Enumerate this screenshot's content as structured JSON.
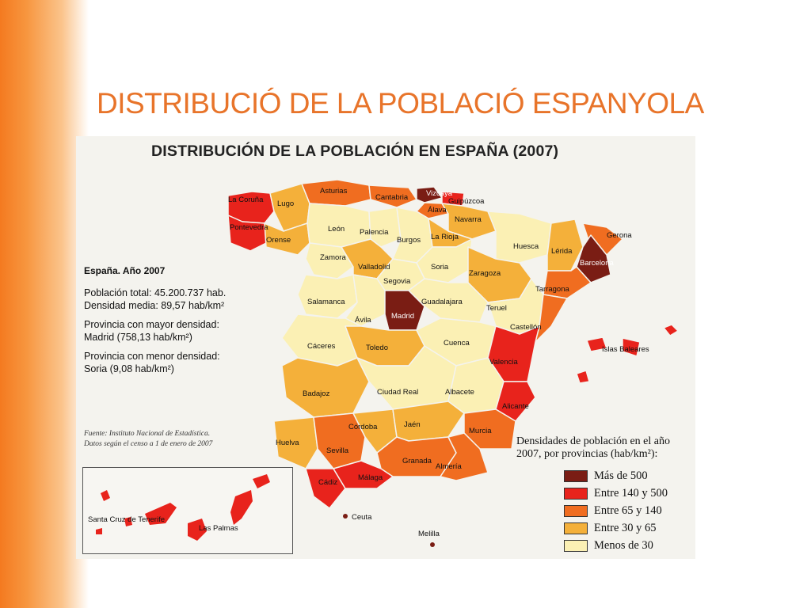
{
  "slide": {
    "title": "DISTRIBUCIÓ DE LA POBLACIÓ ESPANYOLA"
  },
  "map": {
    "heading": "DISTRIBUCIÓN DE LA POBLACIÓN EN ESPAÑA (2007)",
    "stats": {
      "header": "España. Año 2007",
      "total_line1": "Población total: 45.200.737 hab.",
      "total_line2": "Densidad media: 89,57 hab/km²",
      "max_line1": "Provincia con mayor densidad:",
      "max_line2": "Madrid (758,13 hab/km²)",
      "min_line1": "Provincia con menor densidad:",
      "min_line2": "Soria (9,08 hab/km²)"
    },
    "source": {
      "line1": "Fuente: Instituto Nacional de Estadística.",
      "line2": "Datos según el censo a 1 de enero de 2007"
    },
    "legend": {
      "title_line1": "Densidades de población en el año",
      "title_line2": "2007, por provincias (hab/km²):",
      "items": [
        {
          "label": "Más de 500",
          "color": "#7a1d14"
        },
        {
          "label": "Entre 140 y 500",
          "color": "#e8231c"
        },
        {
          "label": "Entre 65 y 140",
          "color": "#f06d20"
        },
        {
          "label": "Entre 30 y 65",
          "color": "#f4b03a"
        },
        {
          "label": "Menos de 30",
          "color": "#fbf0b4"
        }
      ]
    },
    "provinces": {
      "la_coruna": "La Coruña",
      "lugo": "Lugo",
      "asturias": "Asturias",
      "cantabria": "Cantabria",
      "vizcaya": "Vizcaya",
      "guipuzcoa": "Guipúzcoa",
      "alava": "Álava",
      "navarra": "Navarra",
      "pontevedra": "Pontevedra",
      "orense": "Orense",
      "leon": "León",
      "palencia": "Palencia",
      "burgos": "Burgos",
      "la_rioja": "La Rioja",
      "huesca": "Huesca",
      "gerona": "Gerona",
      "lerida": "Lérida",
      "barcelona": "Barcelona",
      "zamora": "Zamora",
      "valladolid": "Valladolid",
      "soria": "Soria",
      "zaragoza": "Zaragoza",
      "tarragona": "Tarragona",
      "segovia": "Segovia",
      "salamanca": "Salamanca",
      "guadalajara": "Guadalajara",
      "teruel": "Teruel",
      "avila": "Ávila",
      "madrid": "Madrid",
      "castellon": "Castellón",
      "caceres": "Cáceres",
      "toledo": "Toledo",
      "cuenca": "Cuenca",
      "valencia": "Valencia",
      "islas_baleares": "Islas Baleares",
      "badajoz": "Badajoz",
      "ciudad_real": "Ciudad Real",
      "albacete": "Albacete",
      "alicante": "Alicante",
      "cordoba": "Córdoba",
      "jaen": "Jaén",
      "murcia": "Murcia",
      "huelva": "Huelva",
      "sevilla": "Sevilla",
      "granada": "Granada",
      "almeria": "Almería",
      "cadiz": "Cádiz",
      "malaga": "Málaga",
      "ceuta": "Ceuta",
      "melilla": "Melilla",
      "santa_cruz": "Santa Cruz de Tenerife",
      "las_palmas": "Las Palmas"
    }
  }
}
